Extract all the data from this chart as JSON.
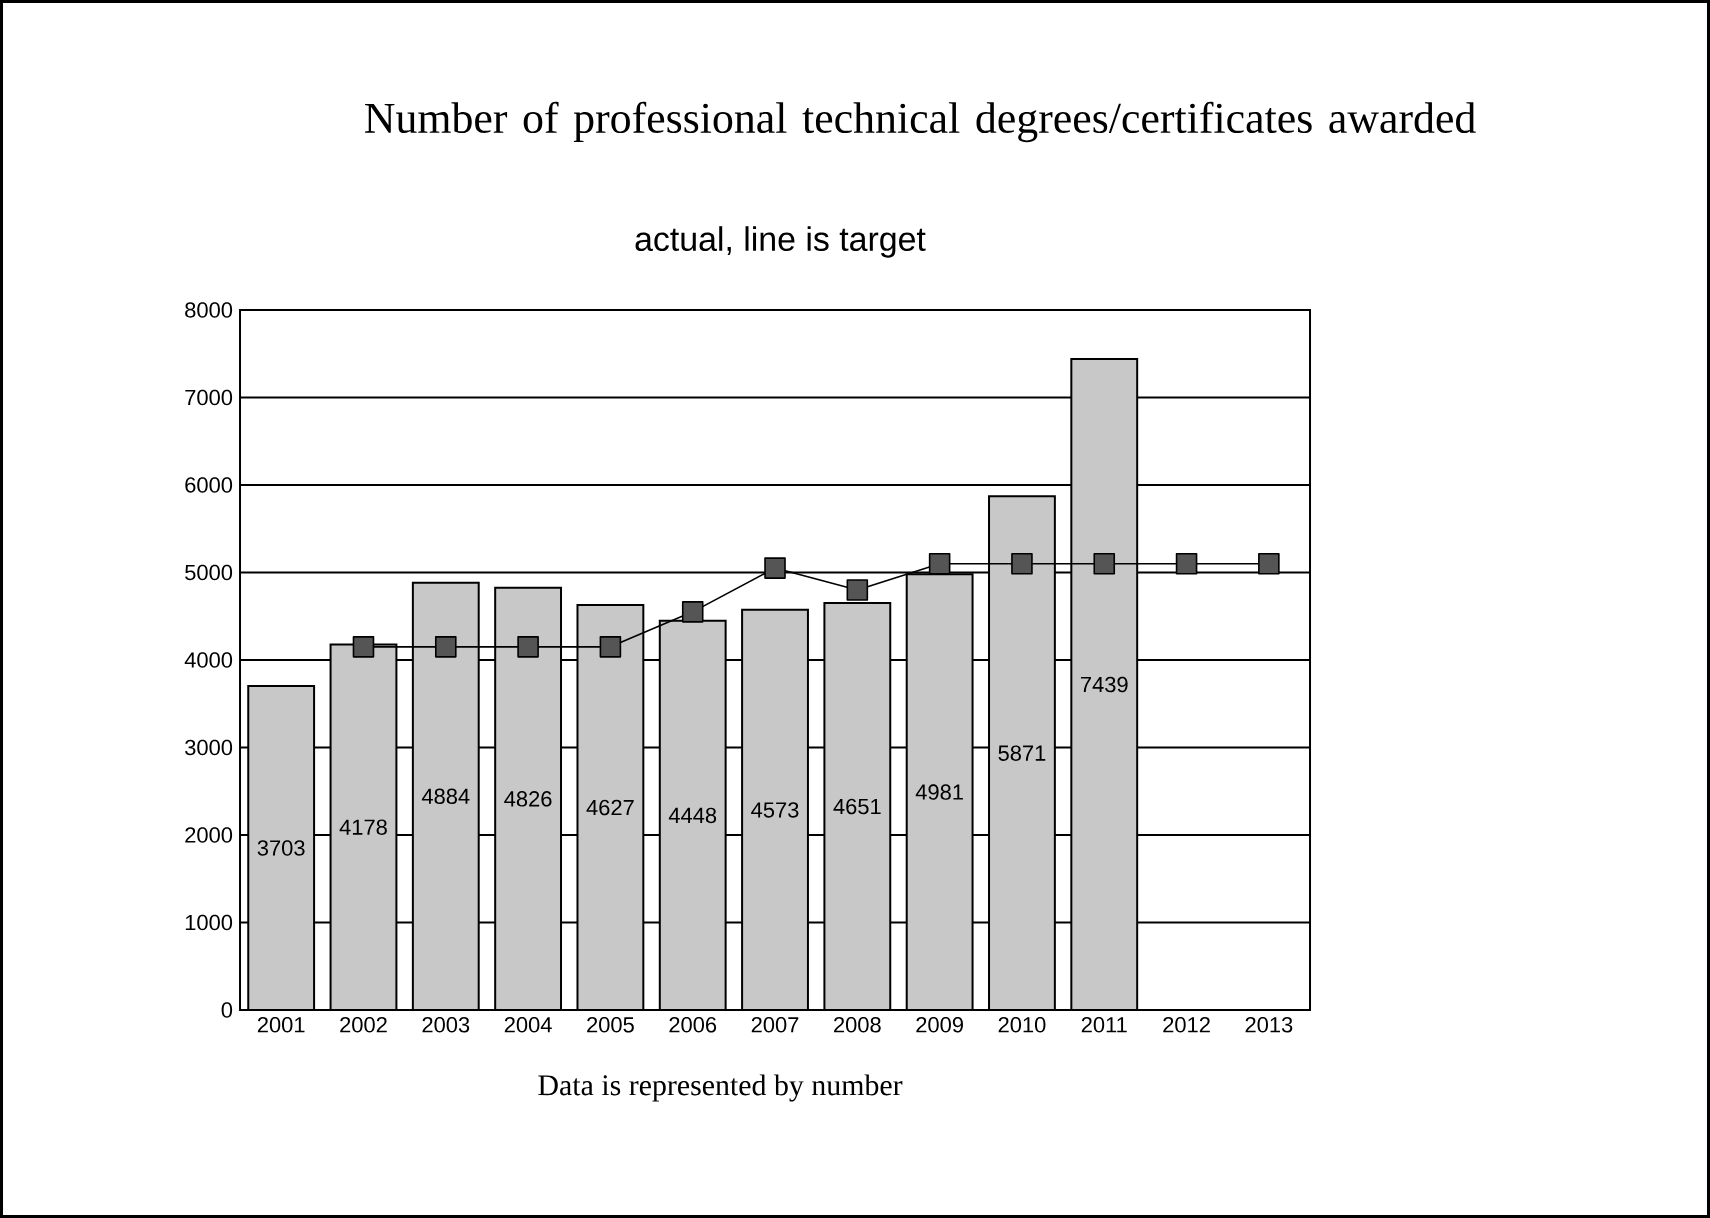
{
  "chart_data": {
    "type": "bar",
    "title": "Number of professional technical degrees/certificates awarded",
    "subtitle": "actual, line is target",
    "categories": [
      "2001",
      "2002",
      "2003",
      "2004",
      "2005",
      "2006",
      "2007",
      "2008",
      "2009",
      "2010",
      "2011",
      "2012",
      "2013"
    ],
    "series": [
      {
        "type": "bar",
        "color": "#c8c8c8",
        "values": [
          3703,
          4178,
          4884,
          4826,
          4627,
          4448,
          4573,
          4651,
          4981,
          5871,
          7439,
          null,
          null
        ],
        "value_labels": [
          "3703",
          "4178",
          "4884",
          "4826",
          "4627",
          "4448",
          "4573",
          "4651",
          "4981",
          "5871",
          "7439",
          null,
          null
        ]
      },
      {
        "type": "line",
        "color": "#555555",
        "marker": "square",
        "line_style": "solid",
        "values": [
          null,
          4150,
          4150,
          4150,
          4150,
          4550,
          5050,
          4800,
          5100,
          5100,
          5100,
          5100,
          5100
        ]
      }
    ],
    "ylim": [
      0,
      8000
    ],
    "yticks": [
      0,
      1000,
      2000,
      3000,
      4000,
      5000,
      6000,
      7000,
      8000
    ],
    "grid": "y",
    "annotations": [
      "Data is represented by number"
    ]
  }
}
